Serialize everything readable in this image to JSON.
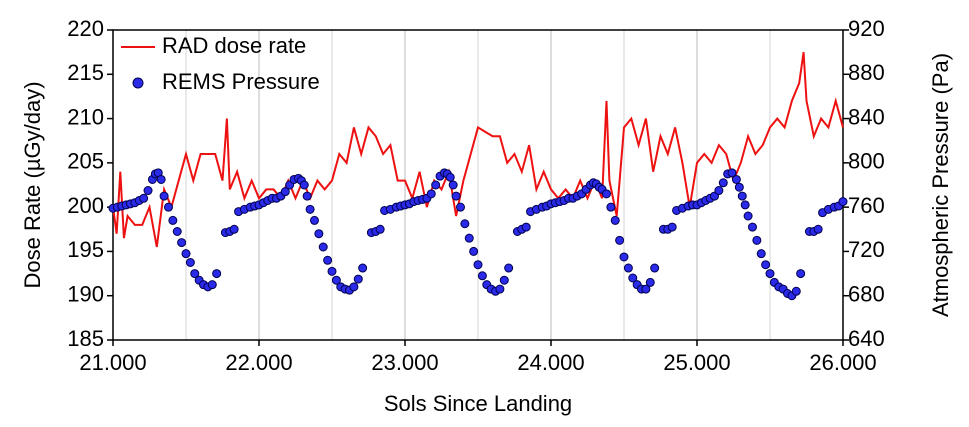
{
  "chart_data": {
    "type": "combo",
    "x_label": "Sols Since Landing",
    "y_label": "Dose Rate (µGy/day)",
    "y2_label": "Atmospheric Pressure (Pa)",
    "xlim": [
      21,
      26
    ],
    "xticks": [
      {
        "value": 21,
        "label": "21.000"
      },
      {
        "value": 22,
        "label": "22.000"
      },
      {
        "value": 23,
        "label": "23.000"
      },
      {
        "value": 24,
        "label": "24.000"
      },
      {
        "value": 25,
        "label": "25.000"
      },
      {
        "value": 26,
        "label": "26.000"
      }
    ],
    "x_minor_grid": [
      21.5,
      22.5,
      23.5,
      24.5,
      25.5
    ],
    "ylim": [
      185,
      220
    ],
    "yticks": [
      185,
      190,
      195,
      200,
      205,
      210,
      215,
      220
    ],
    "y2lim": [
      640,
      920
    ],
    "y2ticks": [
      640,
      680,
      720,
      760,
      800,
      840,
      880,
      920
    ],
    "grid": true,
    "legend": "upper left",
    "series": [
      {
        "name": "RAD dose rate",
        "type": "line",
        "color": "#ee1111",
        "x": [
          21,
          21.025,
          21.05,
          21.075,
          21.1,
          21.15,
          21.2,
          21.25,
          21.3,
          21.35,
          21.4,
          21.45,
          21.5,
          21.55,
          21.6,
          21.65,
          21.7,
          21.75,
          21.78,
          21.8,
          21.85,
          21.9,
          21.95,
          22,
          22.05,
          22.1,
          22.15,
          22.2,
          22.25,
          22.3,
          22.35,
          22.4,
          22.45,
          22.5,
          22.55,
          22.6,
          22.65,
          22.7,
          22.75,
          22.8,
          22.85,
          22.9,
          22.95,
          23,
          23.05,
          23.1,
          23.15,
          23.2,
          23.25,
          23.3,
          23.35,
          23.4,
          23.45,
          23.5,
          23.55,
          23.6,
          23.65,
          23.7,
          23.75,
          23.8,
          23.85,
          23.9,
          23.95,
          24,
          24.05,
          24.1,
          24.15,
          24.2,
          24.25,
          24.3,
          24.35,
          24.38,
          24.4,
          24.45,
          24.5,
          24.55,
          24.6,
          24.65,
          24.7,
          24.75,
          24.8,
          24.85,
          24.9,
          24.95,
          25,
          25.05,
          25.1,
          25.15,
          25.2,
          25.25,
          25.3,
          25.35,
          25.4,
          25.45,
          25.5,
          25.55,
          25.6,
          25.65,
          25.7,
          25.73,
          25.75,
          25.8,
          25.85,
          25.9,
          25.95,
          26
        ],
        "values": [
          200,
          197,
          204,
          196.5,
          199,
          198,
          198,
          200,
          195.5,
          202,
          200,
          203,
          206,
          203,
          206,
          206,
          206,
          203,
          210,
          202,
          204,
          201,
          203,
          201,
          202,
          202,
          201,
          203,
          201,
          203,
          201,
          203,
          202,
          203,
          206,
          205,
          209,
          206,
          209,
          208,
          206,
          207,
          203,
          203,
          201,
          204,
          200,
          203,
          202,
          204,
          199,
          203,
          206,
          209,
          208.5,
          208,
          208,
          205,
          206,
          204,
          207,
          202,
          204,
          202,
          201,
          202,
          201,
          203,
          201,
          203,
          201,
          212,
          203,
          199,
          209,
          210,
          207,
          210,
          204,
          208,
          206,
          209,
          205,
          200,
          205,
          206,
          205,
          207,
          206,
          203,
          205,
          208,
          206,
          207,
          209,
          210,
          209,
          212,
          214,
          217.5,
          212,
          208,
          210,
          209,
          212,
          209
        ]
      },
      {
        "name": "REMS Pressure",
        "type": "scatter",
        "color": "#2a2ae8",
        "axis": "y2",
        "x": [
          21,
          21.03,
          21.06,
          21.09,
          21.12,
          21.15,
          21.18,
          21.21,
          21.24,
          21.27,
          21.29,
          21.31,
          21.33,
          21.35,
          21.38,
          21.41,
          21.44,
          21.47,
          21.5,
          21.53,
          21.56,
          21.59,
          21.62,
          21.65,
          21.68,
          21.71,
          21.77,
          21.8,
          21.83,
          21.86,
          21.9,
          21.94,
          21.97,
          22,
          22.03,
          22.06,
          22.09,
          22.12,
          22.15,
          22.18,
          22.21,
          22.24,
          22.27,
          22.29,
          22.31,
          22.33,
          22.35,
          22.38,
          22.41,
          22.44,
          22.47,
          22.5,
          22.53,
          22.56,
          22.59,
          22.62,
          22.65,
          22.68,
          22.71,
          22.77,
          22.8,
          22.83,
          22.86,
          22.9,
          22.94,
          22.97,
          23,
          23.03,
          23.06,
          23.09,
          23.12,
          23.15,
          23.18,
          23.21,
          23.24,
          23.27,
          23.29,
          23.31,
          23.33,
          23.35,
          23.38,
          23.41,
          23.44,
          23.47,
          23.5,
          23.53,
          23.56,
          23.59,
          23.62,
          23.65,
          23.68,
          23.71,
          23.77,
          23.8,
          23.83,
          23.86,
          23.9,
          23.94,
          23.97,
          24,
          24.03,
          24.06,
          24.09,
          24.12,
          24.15,
          24.18,
          24.21,
          24.24,
          24.27,
          24.29,
          24.31,
          24.33,
          24.35,
          24.38,
          24.41,
          24.44,
          24.47,
          24.5,
          24.53,
          24.56,
          24.59,
          24.62,
          24.65,
          24.68,
          24.71,
          24.77,
          24.8,
          24.83,
          24.86,
          24.9,
          24.94,
          24.97,
          25,
          25.03,
          25.06,
          25.09,
          25.12,
          25.15,
          25.18,
          25.21,
          25.24,
          25.27,
          25.29,
          25.31,
          25.33,
          25.35,
          25.38,
          25.41,
          25.44,
          25.47,
          25.5,
          25.53,
          25.56,
          25.59,
          25.62,
          25.65,
          25.68,
          25.71,
          25.77,
          25.8,
          25.83,
          25.86,
          25.9,
          25.94,
          25.97,
          26
        ],
        "values": [
          759,
          760,
          761,
          762,
          763,
          764,
          766,
          768,
          775,
          785,
          790,
          791,
          785,
          770,
          760,
          748,
          738,
          728,
          718,
          710,
          700,
          694,
          690,
          688,
          690,
          700,
          737,
          738,
          740,
          756,
          758,
          760,
          761,
          762,
          764,
          766,
          768,
          768,
          770,
          774,
          780,
          785,
          786,
          784,
          780,
          770,
          758,
          748,
          736,
          724,
          712,
          702,
          694,
          688,
          686,
          685,
          688,
          695,
          705,
          737,
          738,
          740,
          757,
          758,
          760,
          761,
          762,
          763,
          765,
          766,
          767,
          768,
          772,
          780,
          788,
          791,
          790,
          787,
          780,
          770,
          760,
          745,
          732,
          720,
          708,
          698,
          690,
          686,
          684,
          686,
          694,
          705,
          738,
          740,
          742,
          756,
          758,
          760,
          761,
          763,
          764,
          765,
          766,
          768,
          768,
          770,
          772,
          776,
          780,
          782,
          781,
          778,
          776,
          772,
          760,
          748,
          730,
          715,
          705,
          696,
          690,
          686,
          686,
          692,
          705,
          740,
          740,
          742,
          757,
          759,
          761,
          762,
          762,
          764,
          766,
          768,
          770,
          775,
          782,
          790,
          791,
          785,
          778,
          770,
          762,
          752,
          742,
          730,
          718,
          708,
          700,
          692,
          688,
          686,
          682,
          680,
          684,
          700,
          738,
          738,
          740,
          755,
          758,
          760,
          761,
          765
        ]
      }
    ]
  }
}
